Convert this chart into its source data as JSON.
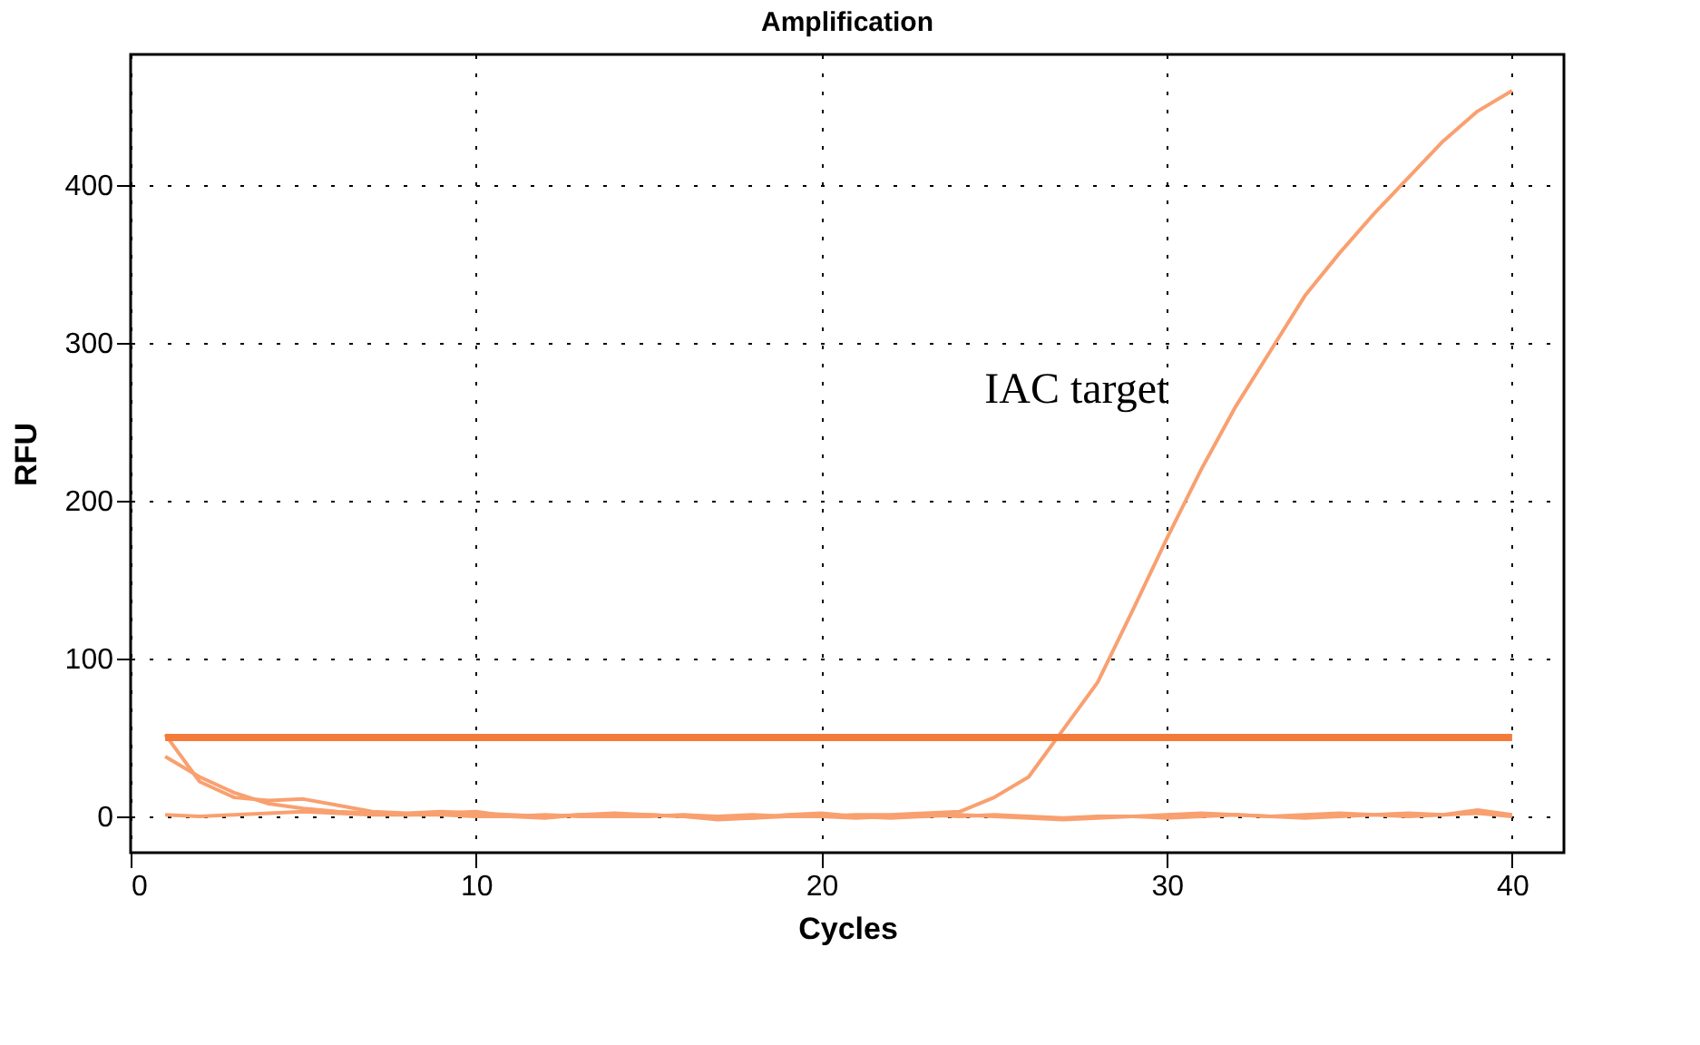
{
  "chart_data": {
    "type": "line",
    "title": "Amplification",
    "xlabel": "Cycles",
    "ylabel": "RFU",
    "x": [
      1,
      2,
      3,
      4,
      5,
      6,
      7,
      8,
      9,
      10,
      11,
      12,
      13,
      14,
      15,
      16,
      17,
      18,
      19,
      20,
      21,
      22,
      23,
      24,
      25,
      26,
      27,
      28,
      29,
      30,
      31,
      32,
      33,
      34,
      35,
      36,
      37,
      38,
      39,
      40
    ],
    "series": [
      {
        "color": "#f9a070",
        "values": [
          38,
          25,
          15,
          8,
          5,
          3,
          2,
          1,
          1,
          0,
          0,
          1,
          0,
          0,
          1,
          0,
          0,
          1,
          0,
          0,
          1,
          1,
          2,
          3,
          12,
          25,
          55,
          85,
          130,
          176,
          220,
          260,
          295,
          330,
          357,
          382,
          405,
          428,
          447,
          460
        ]
      },
      {
        "color": "#f9a070",
        "values": [
          52,
          22,
          12,
          10,
          11,
          7,
          3,
          2,
          3,
          2,
          1,
          0,
          1,
          0,
          0,
          1,
          0,
          -1,
          0,
          0,
          -1,
          0,
          1,
          0,
          1,
          0,
          -1,
          0,
          0,
          -1,
          0,
          1,
          0,
          1,
          2,
          1,
          0,
          1,
          4,
          1
        ]
      },
      {
        "color": "#f9a070",
        "values": [
          1,
          0,
          1,
          2,
          3,
          2,
          1,
          1,
          2,
          3,
          0,
          -1,
          1,
          2,
          1,
          0,
          -2,
          -1,
          1,
          2,
          0,
          -1,
          0,
          1,
          0,
          -1,
          -2,
          -1,
          0,
          1,
          2,
          1,
          0,
          -1,
          0,
          1,
          2,
          1,
          2,
          0
        ]
      }
    ],
    "ref_lines": [
      {
        "axis": "y",
        "value": 50,
        "color": "#f47a3a"
      }
    ],
    "annotations": [
      "IAC target"
    ],
    "xlim": [
      0,
      41.5
    ],
    "ylim": [
      -23,
      483
    ],
    "xticks": [
      0,
      10,
      20,
      30,
      40
    ],
    "yticks": [
      0,
      100,
      200,
      300,
      400
    ],
    "grid": true,
    "line_style": "solid",
    "marker": "none"
  }
}
